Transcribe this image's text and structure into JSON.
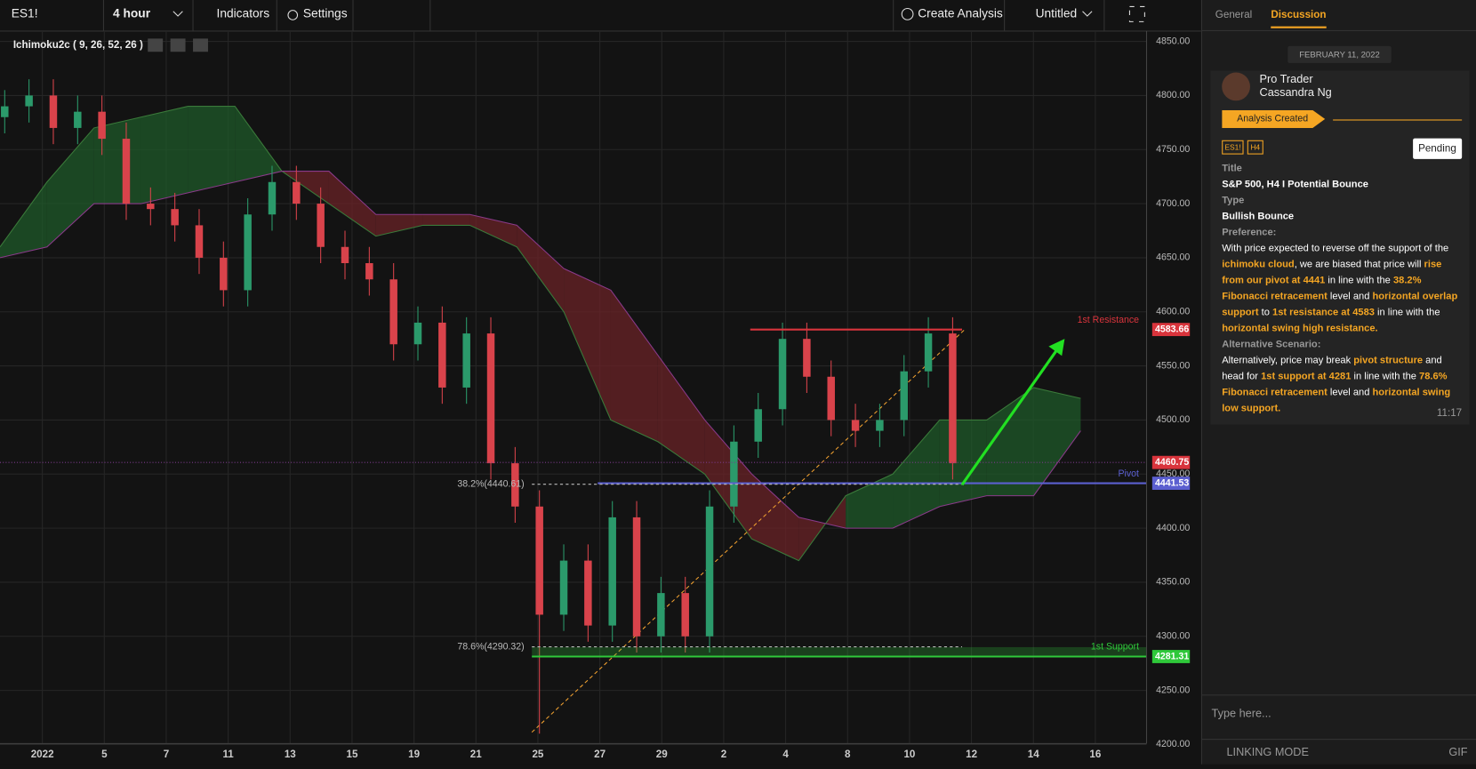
{
  "toolbar": {
    "symbol": "ES1!",
    "interval": "4 hour",
    "indicators": "Indicators",
    "settings": "Settings",
    "create": "Create Analysis",
    "layout": "Untitled"
  },
  "chart": {
    "indicator": "Ichimoku2c ( 9, 26, 52, 26 )",
    "ylim": [
      4200,
      4850
    ],
    "yticks": [
      {
        "value": 4850,
        "label": "4850.00"
      },
      {
        "value": 4800,
        "label": "4800.00"
      },
      {
        "value": 4750,
        "label": "4750.00"
      },
      {
        "value": 4700,
        "label": "4700.00"
      },
      {
        "value": 4650,
        "label": "4650.00"
      },
      {
        "value": 4600,
        "label": "4600.00"
      },
      {
        "value": 4550,
        "label": "4550.00"
      },
      {
        "value": 4500,
        "label": "4500.00"
      },
      {
        "value": 4450,
        "label": "4450.00"
      },
      {
        "value": 4400,
        "label": "4400.00"
      },
      {
        "value": 4350,
        "label": "4350.00"
      },
      {
        "value": 4300,
        "label": "4300.00"
      },
      {
        "value": 4250,
        "label": "4250.00"
      },
      {
        "value": 4200,
        "label": "4200.00"
      }
    ],
    "xlabels": [
      "2022",
      "5",
      "7",
      "11",
      "13",
      "15",
      "19",
      "21",
      "25",
      "27",
      "29",
      "2",
      "4",
      "8",
      "10",
      "12",
      "14",
      "16"
    ],
    "candles": {
      "open": [
        4780,
        4790,
        4800,
        4770,
        4785,
        4760,
        4700,
        4695,
        4680,
        4650,
        4620,
        4690,
        4720,
        4700,
        4660,
        4645,
        4630,
        4570,
        4590,
        4530,
        4580,
        4460,
        4420,
        4320,
        4370,
        4310,
        4410,
        4300,
        4340,
        4300,
        4420,
        4480,
        4510,
        4575,
        4540,
        4500,
        4490,
        4500,
        4545,
        4580
      ],
      "high": [
        4805,
        4815,
        4815,
        4800,
        4800,
        4775,
        4715,
        4710,
        4695,
        4665,
        4705,
        4735,
        4735,
        4715,
        4675,
        4660,
        4645,
        4605,
        4605,
        4595,
        4595,
        4475,
        4435,
        4385,
        4385,
        4425,
        4425,
        4355,
        4355,
        4435,
        4495,
        4525,
        4590,
        4590,
        4555,
        4515,
        4515,
        4560,
        4595,
        4595
      ],
      "low": [
        4765,
        4775,
        4755,
        4755,
        4745,
        4685,
        4680,
        4665,
        4635,
        4605,
        4605,
        4675,
        4685,
        4645,
        4630,
        4615,
        4555,
        4555,
        4515,
        4515,
        4445,
        4405,
        4210,
        4305,
        4295,
        4295,
        4285,
        4285,
        4285,
        4285,
        4405,
        4465,
        4495,
        4525,
        4485,
        4475,
        4475,
        4485,
        4530,
        4445
      ],
      "close": [
        4790,
        4800,
        4770,
        4785,
        4760,
        4700,
        4695,
        4680,
        4650,
        4620,
        4690,
        4720,
        4700,
        4660,
        4645,
        4630,
        4570,
        4590,
        4530,
        4580,
        4460,
        4420,
        4320,
        4370,
        4310,
        4410,
        4300,
        4340,
        4300,
        4420,
        4480,
        4510,
        4575,
        4540,
        4500,
        4490,
        4500,
        4545,
        4580,
        4460
      ],
      "up_color": "#2b9a6b",
      "down_color": "#d9434b"
    },
    "cloud": {
      "span_a": [
        4660,
        4720,
        4770,
        4780,
        4790,
        4790,
        4730,
        4700,
        4670,
        4680,
        4680,
        4660,
        4600,
        4500,
        4480,
        4450,
        4390,
        4370,
        4430,
        4450,
        4500,
        4500,
        4530,
        4520
      ],
      "span_b": [
        4650,
        4660,
        4700,
        4700,
        4710,
        4720,
        4730,
        4730,
        4690,
        4690,
        4690,
        4680,
        4640,
        4620,
        4560,
        4500,
        4450,
        4410,
        4400,
        4400,
        4420,
        4430,
        4430,
        4490
      ],
      "bull_color": "#1f5a2a",
      "bear_color": "#6a2327"
    },
    "levels": [
      {
        "name": "1st Resistance",
        "value": 4583.66,
        "color": "#d9343c"
      },
      {
        "name": "Pivot",
        "value": 4441.53,
        "color": "#5b5fd0"
      },
      {
        "name": "1st Support",
        "value": 4281.31,
        "color": "#2fc83a"
      }
    ],
    "last_price": 4460.75,
    "fib": [
      {
        "label": "38.2%(4440.61)",
        "value": 4440.61
      },
      {
        "label": "78.6%(4290.32)",
        "value": 4290.32
      }
    ]
  },
  "panel": {
    "tabs": [
      "General",
      "Discussion"
    ],
    "date": "FEBRUARY 11, 2022",
    "author": {
      "role": "Pro Trader",
      "name": "Cassandra Ng"
    },
    "status": "Analysis Created",
    "tags": [
      "ES1!",
      "H4"
    ],
    "badge": "Pending",
    "fields": [
      {
        "label": "Title",
        "value": "S&P 500, H4 I Potential Bounce"
      },
      {
        "label": "Type",
        "value": "Bullish Bounce"
      }
    ],
    "preference_label": "Preference:",
    "preference": [
      {
        "text": "With price expected to reverse off the support of the ",
        "hl": false
      },
      {
        "text": "ichimoku cloud",
        "hl": true
      },
      {
        "text": ", we are biased that price will ",
        "hl": false
      },
      {
        "text": "rise from our pivot at 4441",
        "hl": true
      },
      {
        "text": " in line with the ",
        "hl": false
      },
      {
        "text": "38.2% Fibonacci retracement",
        "hl": true
      },
      {
        "text": " level and ",
        "hl": false
      },
      {
        "text": "horizontal overlap support",
        "hl": true
      },
      {
        "text": " to ",
        "hl": false
      },
      {
        "text": "1st resistance at 4583",
        "hl": true
      },
      {
        "text": " in line with the ",
        "hl": false
      },
      {
        "text": "horizontal swing high resistance.",
        "hl": true
      }
    ],
    "alternative_label": "Alternative Scenario:",
    "alternative": [
      {
        "text": "Alternatively, price may break ",
        "hl": false
      },
      {
        "text": "pivot structure",
        "hl": true
      },
      {
        "text": " and head for ",
        "hl": false
      },
      {
        "text": "1st support at 4281",
        "hl": true
      },
      {
        "text": " in line with the ",
        "hl": false
      },
      {
        "text": "78.6% Fibonacci retracement",
        "hl": true
      },
      {
        "text": " level and ",
        "hl": false
      },
      {
        "text": "horizontal swing low support.",
        "hl": true
      }
    ],
    "time": "11:17",
    "input": "Type here...",
    "footer": {
      "linking": "LINKING MODE",
      "gif": "GIF"
    }
  }
}
